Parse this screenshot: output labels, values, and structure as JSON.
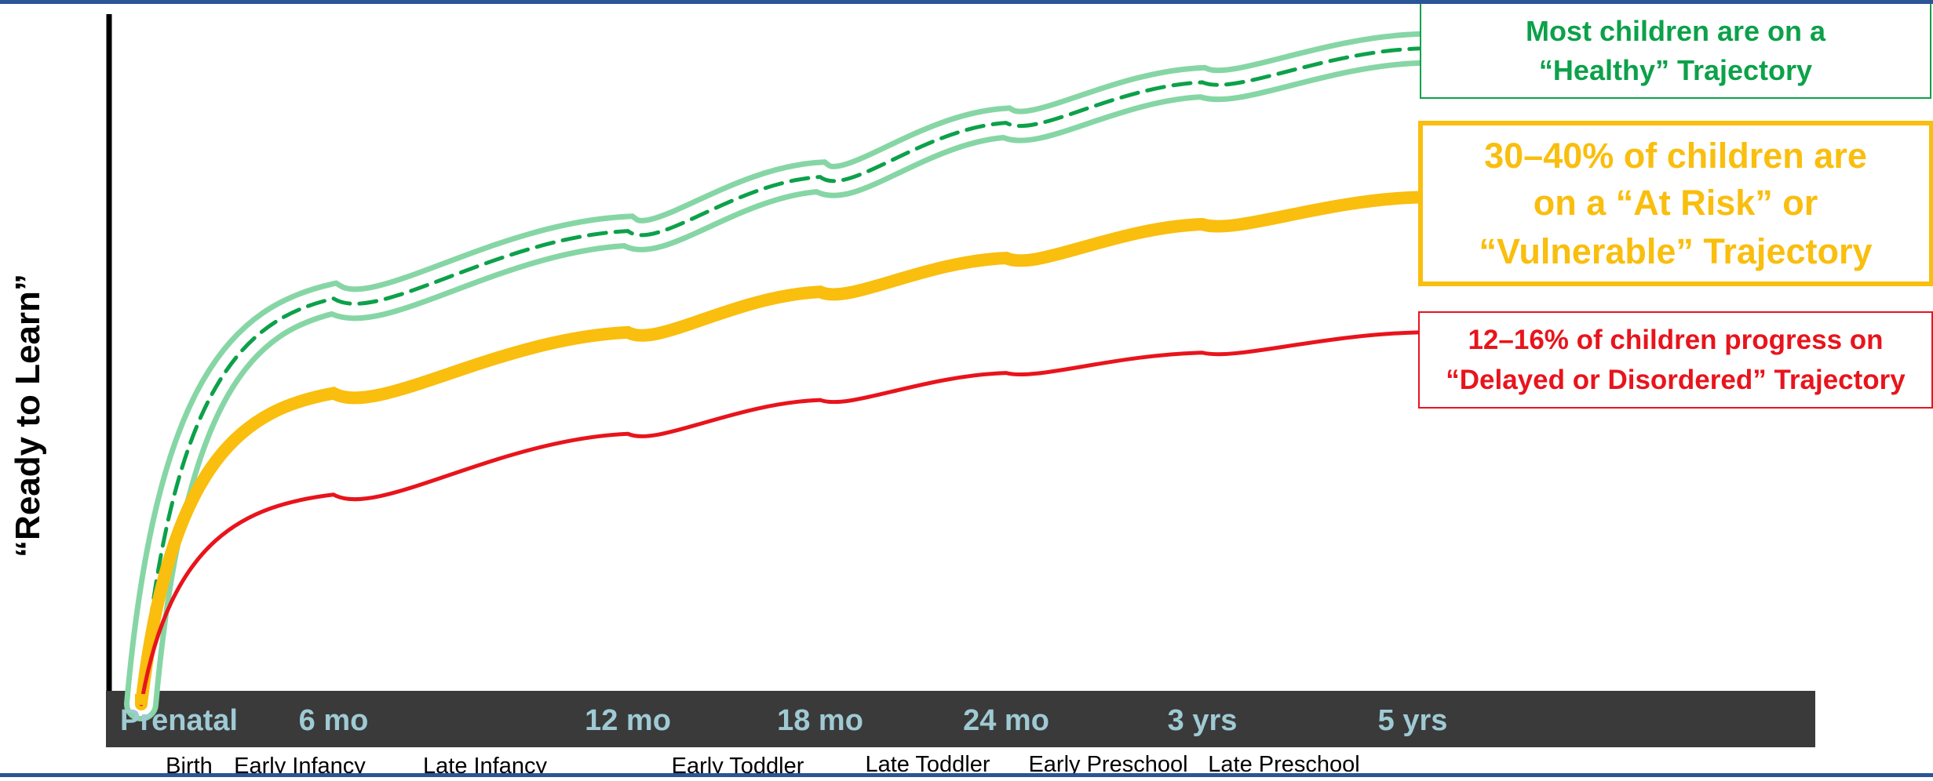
{
  "chart_data": {
    "type": "line",
    "ylabel": "“Ready to Learn”",
    "xlabel": "",
    "x_ticks": [
      "Prenatal",
      "6 mo",
      "12 mo",
      "18 mo",
      "24 mo",
      "3 yrs",
      "5 yrs"
    ],
    "stage_labels": [
      "Birth",
      "Early Infancy",
      "Late Infancy",
      "Early Toddler",
      "Late Toddler",
      "Early Preschool",
      "Late Preschool"
    ],
    "grid": false,
    "legend": "callouts at right",
    "series": [
      {
        "key": "healthy",
        "style": "dashed line inside light band",
        "color": "#0ca14a",
        "band_color": "#86d6a5",
        "values": [
          0.0,
          0.6,
          0.7,
          0.78,
          0.86,
          0.92,
          0.97
        ]
      },
      {
        "key": "at_risk",
        "style": "thick solid",
        "color": "#f9be0e",
        "values": [
          0.0,
          0.46,
          0.55,
          0.61,
          0.66,
          0.71,
          0.75
        ]
      },
      {
        "key": "delayed",
        "style": "solid",
        "color": "#e8141c",
        "values": [
          0.0,
          0.31,
          0.4,
          0.45,
          0.49,
          0.52,
          0.55
        ]
      }
    ],
    "annotations": {
      "healthy": {
        "line1": "Most children are on a",
        "line2": "“Healthy” Trajectory",
        "color": "#0ca14a"
      },
      "at_risk": {
        "line1": "30–40% of children are",
        "line2": "on a “At Risk” or",
        "line3": "“Vulnerable” Trajectory",
        "color": "#f9be0e"
      },
      "delayed": {
        "line1": "12–16% of children progress on",
        "line2": "“Delayed or Disordered” Trajectory",
        "color": "#e8141c"
      }
    }
  },
  "colors": {
    "axis": "#000000",
    "timeline_bar": "#3a3a3a",
    "tick_text": "#9fcad4",
    "frame": "#2a5597"
  }
}
